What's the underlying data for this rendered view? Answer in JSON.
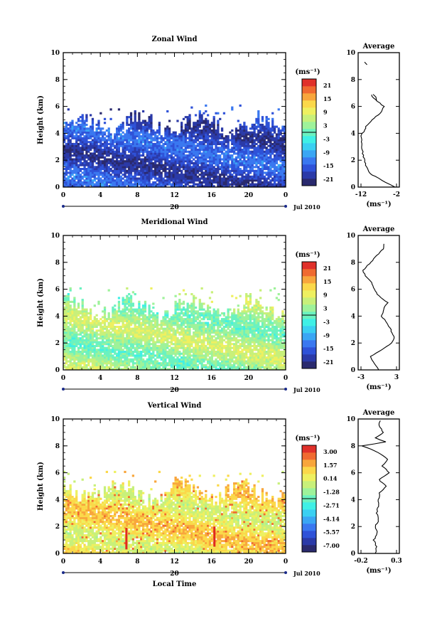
{
  "colorbar_colors": [
    "#2a2a6e",
    "#2b3aa8",
    "#2f52d8",
    "#3a78f0",
    "#3aa6f4",
    "#3ad0f2",
    "#3ff0e6",
    "#6af2c0",
    "#9ef29a",
    "#c8f07a",
    "#eef060",
    "#fbd84a",
    "#f8a63c",
    "#f06a30",
    "#e0302a"
  ],
  "panels": [
    {
      "title": "Zonal Wind",
      "ylabel": "Height (km)",
      "xlabel": "",
      "yticks": [
        "0",
        "2",
        "4",
        "6",
        "8",
        "10"
      ],
      "xticks": [
        "0",
        "4",
        "8",
        "12",
        "16",
        "20",
        "0"
      ],
      "day_label": "20",
      "month_label": "Jul 2010",
      "unit_label": "(ms⁻¹)",
      "colorbar_ticks": [
        "21",
        "15",
        "9",
        "3",
        "-3",
        "-9",
        "-15",
        "-21"
      ],
      "avg_title": "Average",
      "avg_xticks": [
        "-12",
        "-2"
      ],
      "avg_xlabel": "(ms⁻¹)",
      "avg_yticks": [
        "0",
        "2",
        "4",
        "6",
        "8",
        "10"
      ]
    },
    {
      "title": "Meridional Wind",
      "ylabel": "Height (km)",
      "xlabel": "",
      "yticks": [
        "0",
        "2",
        "4",
        "6",
        "8",
        "10"
      ],
      "xticks": [
        "0",
        "4",
        "8",
        "12",
        "16",
        "20",
        "0"
      ],
      "day_label": "20",
      "month_label": "Jul 2010",
      "unit_label": "(ms⁻¹)",
      "colorbar_ticks": [
        "21",
        "15",
        "9",
        "3",
        "-3",
        "-9",
        "-15",
        "-21"
      ],
      "avg_title": "Average",
      "avg_xticks": [
        "-3",
        "3"
      ],
      "avg_xlabel": "(ms⁻¹)",
      "avg_yticks": [
        "0",
        "2",
        "4",
        "6",
        "8",
        "10"
      ]
    },
    {
      "title": "Vertical Wind",
      "ylabel": "Height (km)",
      "xlabel": "Local Time",
      "yticks": [
        "0",
        "2",
        "4",
        "6",
        "8",
        "10"
      ],
      "xticks": [
        "0",
        "4",
        "8",
        "12",
        "16",
        "20",
        "0"
      ],
      "day_label": "20",
      "month_label": "Jul 2010",
      "unit_label": "(ms⁻¹)",
      "colorbar_ticks": [
        "3.00",
        "1.57",
        "0.14",
        "-1.28",
        "-2.71",
        "-4.14",
        "-5.57",
        "-7.00"
      ],
      "avg_title": "Average",
      "avg_xticks": [
        "-0.2",
        "0.3"
      ],
      "avg_xlabel": "(ms⁻¹)",
      "avg_yticks": [
        "0",
        "2",
        "4",
        "6",
        "8",
        "10"
      ]
    }
  ],
  "chart_data": [
    {
      "type": "heatmap",
      "title": "Zonal Wind",
      "xlabel": "",
      "ylabel": "Height (km)",
      "x_range_hours": [
        0,
        24
      ],
      "y_range_km": [
        0,
        10
      ],
      "color_range": [
        -21,
        21
      ],
      "data_extent_km": [
        0,
        5.5
      ],
      "dominant_range": [
        -21,
        -9
      ],
      "profile": {
        "title": "Average",
        "xlim": [
          -12,
          -2
        ],
        "height_km": [
          0.0,
          0.2,
          0.5,
          0.8,
          1.0,
          1.5,
          2.0,
          2.5,
          3.0,
          3.5,
          3.8,
          4.0,
          4.5,
          5.0,
          5.5,
          6.0,
          6.5,
          7.0,
          9.2
        ],
        "value": [
          -2.4,
          -4.0,
          -6.0,
          -8.0,
          -9.5,
          -10.5,
          -11.0,
          -11.5,
          -11.7,
          -11.9,
          -12.0,
          -11.5,
          -10.5,
          -9.0,
          -6.5,
          -5.5,
          -8.0,
          -9.5,
          -10.5
        ]
      }
    },
    {
      "type": "heatmap",
      "title": "Meridional Wind",
      "xlabel": "",
      "ylabel": "Height (km)",
      "x_range_hours": [
        0,
        24
      ],
      "y_range_km": [
        0,
        10
      ],
      "color_range": [
        -21,
        21
      ],
      "data_extent_km": [
        0,
        5.5
      ],
      "dominant_range": [
        -3,
        9
      ],
      "profile": {
        "title": "Average",
        "xlim": [
          -3,
          3
        ],
        "height_km": [
          0.0,
          0.3,
          0.6,
          1.0,
          1.5,
          2.0,
          2.5,
          3.0,
          3.5,
          4.0,
          4.5,
          5.0,
          5.5,
          6.0,
          6.5,
          7.0,
          7.4,
          9.0,
          9.5
        ],
        "value": [
          0.0,
          -0.5,
          -1.0,
          -1.3,
          0.5,
          2.2,
          2.6,
          2.0,
          1.4,
          0.5,
          0.8,
          1.5,
          0.0,
          -0.8,
          -1.2,
          -2.2,
          -2.7,
          0.8,
          1.0
        ]
      }
    },
    {
      "type": "heatmap",
      "title": "Vertical Wind",
      "xlabel": "Local Time",
      "ylabel": "Height (km)",
      "x_range_hours": [
        0,
        24
      ],
      "y_range_km": [
        0,
        10
      ],
      "color_range": [
        -7.0,
        3.0
      ],
      "data_extent_km": [
        0,
        5.5
      ],
      "dominant_range": [
        -1.28,
        1.57
      ],
      "profile": {
        "title": "Average",
        "xlim": [
          -0.2,
          0.3
        ],
        "height_km": [
          0.0,
          0.5,
          1.0,
          1.5,
          2.0,
          2.5,
          3.0,
          3.5,
          4.0,
          4.5,
          5.0,
          5.5,
          6.0,
          6.5,
          7.0,
          7.5,
          8.0,
          8.3,
          8.6,
          9.0,
          9.5,
          10.0
        ],
        "value": [
          0.0,
          0.02,
          -0.02,
          0.03,
          0.0,
          0.05,
          0.02,
          0.04,
          0.05,
          0.06,
          0.15,
          0.05,
          0.2,
          0.1,
          0.18,
          0.05,
          -0.18,
          0.15,
          0.0,
          0.12,
          0.05,
          0.08
        ]
      }
    }
  ]
}
